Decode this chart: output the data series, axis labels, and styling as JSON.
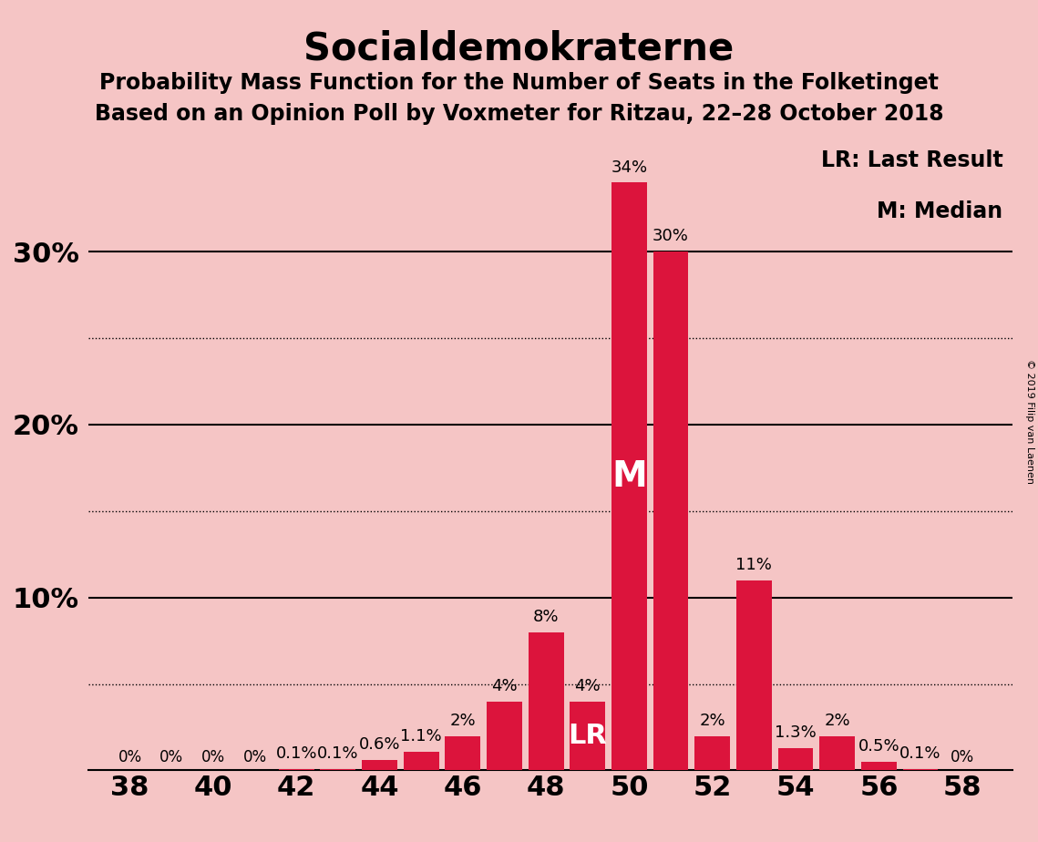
{
  "title": "Socialdemokraterne",
  "subtitle1": "Probability Mass Function for the Number of Seats in the Folketinget",
  "subtitle2": "Based on an Opinion Poll by Voxmeter for Ritzau, 22–28 October 2018",
  "copyright": "© 2019 Filip van Laenen",
  "legend_lr": "LR: Last Result",
  "legend_m": "M: Median",
  "values_map": {
    "38": 0.0,
    "39": 0.0,
    "40": 0.0,
    "41": 0.0,
    "42": 0.1,
    "43": 0.1,
    "44": 0.6,
    "45": 1.1,
    "46": 2.0,
    "47": 4.0,
    "48": 8.0,
    "49": 4.0,
    "50": 34.0,
    "51": 30.0,
    "52": 2.0,
    "53": 11.0,
    "54": 1.3,
    "55": 2.0,
    "56": 0.5,
    "57": 0.1,
    "58": 0.0
  },
  "label_map": {
    "38": "0%",
    "39": "0%",
    "40": "0%",
    "41": "0%",
    "42": "0.1%",
    "43": "0.1%",
    "44": "0.6%",
    "45": "1.1%",
    "46": "2%",
    "47": "4%",
    "48": "8%",
    "49": "4%",
    "50": "34%",
    "51": "30%",
    "52": "2%",
    "53": "11%",
    "54": "1.3%",
    "55": "2%",
    "56": "0.5%",
    "57": "0.1%",
    "58": "0%"
  },
  "median_seat": 50,
  "lr_seat": 49,
  "bar_color": "#DC143C",
  "background_color": "#F5C5C5",
  "ylim": [
    0,
    37
  ],
  "title_fontsize": 30,
  "subtitle_fontsize": 17,
  "annotation_fontsize": 13,
  "axis_fontsize": 22,
  "copyright_fontsize": 8
}
